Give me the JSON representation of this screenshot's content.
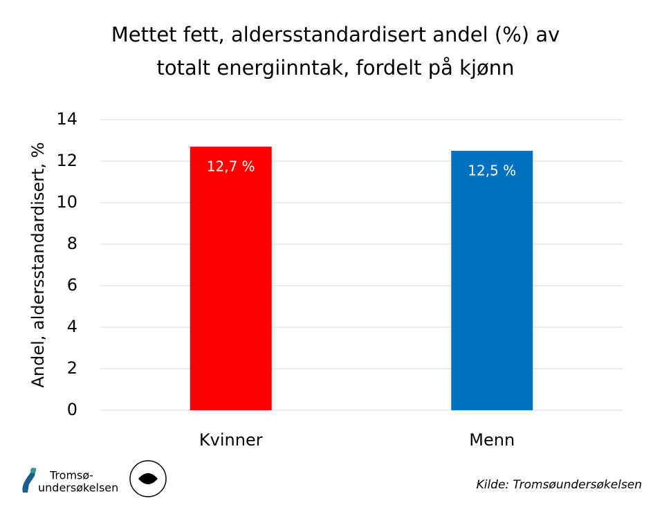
{
  "chart_data": {
    "type": "bar",
    "title": [
      "Mettet fett, aldersstandardisert andel (%) av",
      "totalt energiinntak, fordelt på kjønn"
    ],
    "y_label": "Andel, aldersstandardisert, %",
    "categories": [
      "Kvinner",
      "Menn"
    ],
    "values": [
      12.7,
      12.5
    ],
    "value_labels": [
      "12,7 %",
      "12,5 %"
    ],
    "colors": [
      "#ff0000",
      "#0070c0"
    ],
    "ylim": [
      0,
      14
    ],
    "yticks": [
      0,
      2,
      4,
      6,
      8,
      10,
      12,
      14
    ],
    "grid": true
  },
  "footer": {
    "logo_text": [
      "Tromsø-",
      "undersøkelsen"
    ],
    "source": "Kilde: Tromsøundersøkelsen"
  }
}
